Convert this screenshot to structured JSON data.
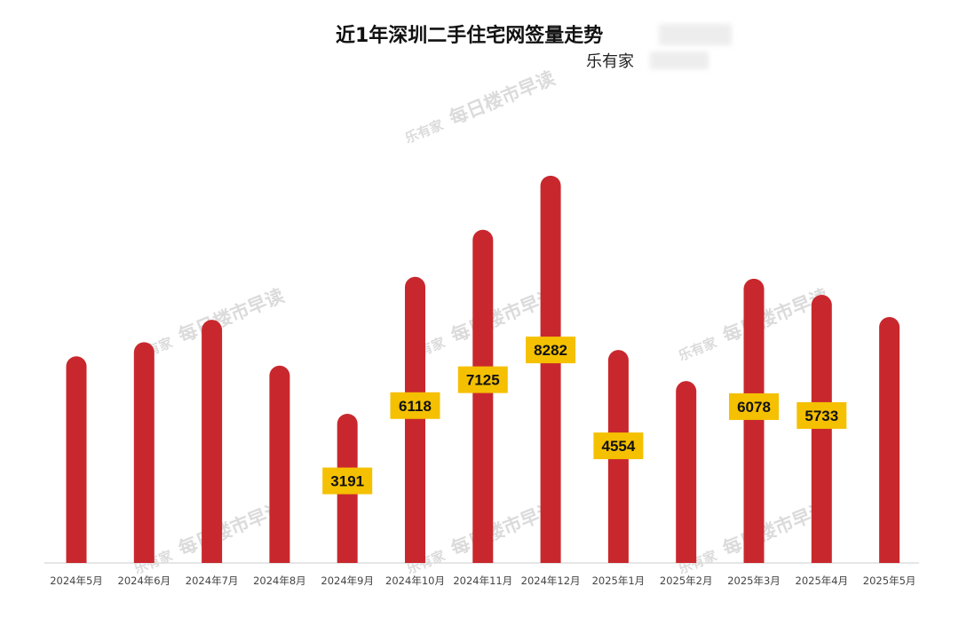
{
  "header": {
    "title": "近1年深圳二手住宅网签量走势",
    "subtitle": "乐有家"
  },
  "watermark": {
    "logo": "乐有家",
    "text": "每日楼市早读"
  },
  "colors": {
    "bar": "#c8282d",
    "label_bg": "#f5c000",
    "label_text": "#111111",
    "axis": "#dddddd",
    "tick": "#444444"
  },
  "chart_data": {
    "type": "bar",
    "categories": [
      "2024年5月",
      "2024年6月",
      "2024年7月",
      "2024年8月",
      "2024年9月",
      "2024年10月",
      "2024年11月",
      "2024年12月",
      "2025年1月",
      "2025年2月",
      "2025年3月",
      "2025年4月",
      "2025年5月"
    ],
    "values": [
      4420,
      4720,
      5200,
      4220,
      3191,
      6118,
      7125,
      8282,
      4554,
      3890,
      6078,
      5733,
      5260
    ],
    "data_labels": [
      null,
      null,
      null,
      null,
      "3191",
      "6118",
      "7125",
      "8282",
      "4554",
      null,
      "6078",
      "5733",
      null
    ],
    "ylim": [
      0,
      9000
    ],
    "title": "近1年深圳二手住宅网签量走势",
    "xlabel": "",
    "ylabel": "",
    "grid": false,
    "legend": "none"
  }
}
